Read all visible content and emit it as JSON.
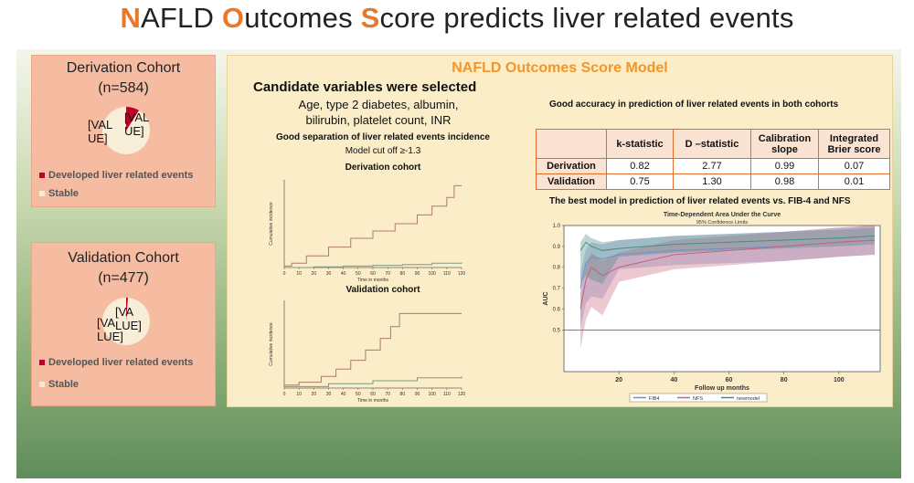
{
  "title": {
    "w1_first": "N",
    "w1_rest": "AFLD ",
    "w2_first": "O",
    "w2_rest": "utcomes ",
    "w3_first": "S",
    "w3_rest": "core predicts liver related events"
  },
  "colors": {
    "accent": "#e8782a",
    "event": "#c0002a",
    "stable": "#f8eed8"
  },
  "derivation": {
    "title": "Derivation Cohort",
    "n": "(n=584)",
    "placeholder_a": "[VAL\nUE]",
    "placeholder_b": "[VAL\nUE]",
    "legend_event": "Developed liver related events",
    "legend_stable": "Stable"
  },
  "validation": {
    "title": "Validation Cohort",
    "n": "(n=477)",
    "placeholder_a": "[VA\nLUE]",
    "placeholder_b": "[VA\nLUE]",
    "legend_event": "Developed liver related events",
    "legend_stable": "Stable"
  },
  "main": {
    "title": "NAFLD Outcomes Score Model",
    "candidate_heading": "Candidate variables were selected",
    "candidate_line1": "Age, type 2 diabetes, albumin,",
    "candidate_line2": "bilirubin, platelet count, INR",
    "separation_heading": "Good separation of liver related events incidence",
    "cutoff": "Model cut off ≥-1.3",
    "derivation_label": "Derivation cohort",
    "validation_label": "Validation cohort",
    "accuracy_heading": "Good accuracy in prediction of liver related events in both cohorts",
    "best_model_heading": "The best model in prediction of liver related events vs. FIB-4 and NFS"
  },
  "accuracy_table": {
    "headers": [
      "",
      "k-statistic",
      "D –statistic",
      "Calibration slope",
      "Integrated Brier score"
    ],
    "rows": [
      {
        "label": "Derivation",
        "values": [
          "0.82",
          "2.77",
          "0.99",
          "0.07"
        ]
      },
      {
        "label": "Validation",
        "values": [
          "0.75",
          "1.30",
          "0.98",
          "0.01"
        ]
      }
    ]
  },
  "chart_data": [
    {
      "type": "line",
      "subtitle": "Derivation cohort",
      "xlabel": "Time in months",
      "ylabel": "Cumulative incidence",
      "x_ticks": [
        0,
        10,
        20,
        30,
        40,
        50,
        60,
        70,
        80,
        90,
        100,
        110,
        120
      ],
      "xlim": [
        0,
        120
      ],
      "series": [
        {
          "x": [
            0,
            5,
            15,
            30,
            45,
            60,
            75,
            90,
            100,
            110,
            115,
            120
          ],
          "y": [
            0.01,
            0.03,
            0.08,
            0.14,
            0.2,
            0.25,
            0.3,
            0.36,
            0.42,
            0.48,
            0.56,
            0.56
          ],
          "color": "#b07a6a"
        },
        {
          "x": [
            0,
            20,
            40,
            60,
            80,
            100,
            120
          ],
          "y": [
            0.0,
            0.005,
            0.01,
            0.015,
            0.02,
            0.03,
            0.035
          ],
          "color": "#7a9a8a"
        }
      ]
    },
    {
      "type": "line",
      "subtitle": "Validation cohort",
      "xlabel": "Time in months",
      "ylabel": "Cumulative incidence",
      "x_ticks": [
        0,
        10,
        20,
        30,
        40,
        50,
        60,
        70,
        80,
        90,
        100,
        110,
        120
      ],
      "xlim": [
        0,
        120
      ],
      "series": [
        {
          "x": [
            0,
            10,
            25,
            35,
            45,
            55,
            65,
            72,
            78,
            90,
            120
          ],
          "y": [
            0.02,
            0.04,
            0.08,
            0.13,
            0.19,
            0.26,
            0.34,
            0.42,
            0.51,
            0.51,
            0.51
          ],
          "color": "#b07a6a"
        },
        {
          "x": [
            0,
            30,
            60,
            90,
            120
          ],
          "y": [
            0.01,
            0.03,
            0.05,
            0.07,
            0.08
          ],
          "color": "#7a9a8a"
        }
      ]
    },
    {
      "type": "line",
      "title": "Time-Dependent Area Under the Curve",
      "subtitle": "95% Confidence Limits",
      "xlabel": "Follow up months",
      "ylabel": "AUC",
      "x_ticks": [
        20,
        40,
        60,
        80,
        100
      ],
      "y_ticks": [
        "0.5",
        "0.6",
        "0.7",
        "0.8",
        "0.9",
        "1.0"
      ],
      "xlim": [
        0,
        115
      ],
      "ylim": [
        0.3,
        1.0
      ],
      "reference_line": 0.5,
      "legend": [
        "FIB4",
        "NFS",
        "newmodel"
      ],
      "series": [
        {
          "name": "FIB4",
          "x": [
            6,
            8,
            10,
            14,
            20,
            30,
            40,
            60,
            80,
            100,
            113
          ],
          "y": [
            0.7,
            0.82,
            0.85,
            0.84,
            0.86,
            0.87,
            0.88,
            0.89,
            0.9,
            0.92,
            0.93
          ],
          "color": "#6f8fc8"
        },
        {
          "name": "NFS",
          "x": [
            6,
            8,
            10,
            14,
            20,
            30,
            40,
            60,
            80,
            100,
            113
          ],
          "y": [
            0.6,
            0.74,
            0.8,
            0.76,
            0.8,
            0.83,
            0.86,
            0.88,
            0.9,
            0.92,
            0.93
          ],
          "color": "#c8617a"
        },
        {
          "name": "newmodel",
          "x": [
            6,
            8,
            10,
            14,
            20,
            30,
            40,
            60,
            80,
            100,
            113
          ],
          "y": [
            0.88,
            0.92,
            0.9,
            0.88,
            0.89,
            0.9,
            0.91,
            0.92,
            0.93,
            0.94,
            0.95
          ],
          "color": "#4a8a82"
        }
      ]
    }
  ]
}
